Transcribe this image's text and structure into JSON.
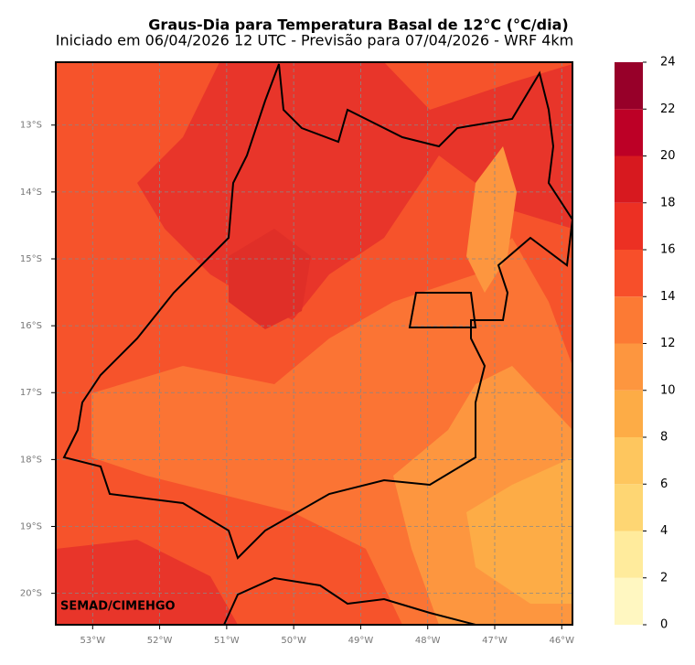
{
  "title": "Graus-Dia para Temperatura Basal de 12°C (°C/dia)",
  "subtitle": "Iniciado em 06/04/2026 12 UTC - Previsão para 07/04/2026 - WRF 4km",
  "credit": "SEMAD/CIMEHGO",
  "map": {
    "lon_range": [
      -53.55,
      -45.84
    ],
    "lat_range": [
      -12.06,
      -20.47
    ],
    "lon_ticks": [
      {
        "value": -53,
        "label": "53°W"
      },
      {
        "value": -52,
        "label": "52°W"
      },
      {
        "value": -51,
        "label": "51°W"
      },
      {
        "value": -50,
        "label": "50°W"
      },
      {
        "value": -49,
        "label": "49°W"
      },
      {
        "value": -48,
        "label": "48°W"
      },
      {
        "value": -47,
        "label": "47°W"
      },
      {
        "value": -46,
        "label": "46°W"
      }
    ],
    "lat_ticks": [
      {
        "value": -13,
        "label": "13°S"
      },
      {
        "value": -14,
        "label": "14°S"
      },
      {
        "value": -15,
        "label": "15°S"
      },
      {
        "value": -16,
        "label": "16°S"
      },
      {
        "value": -17,
        "label": "17°S"
      },
      {
        "value": -18,
        "label": "18°S"
      },
      {
        "value": -19,
        "label": "19°S"
      },
      {
        "value": -20,
        "label": "20°S"
      }
    ],
    "grid": true
  },
  "colorbar": {
    "ticks": [
      0,
      2,
      4,
      6,
      8,
      10,
      12,
      14,
      16,
      18,
      20,
      22,
      24
    ],
    "colors": [
      "#fff7c1",
      "#ffeb9c",
      "#fed673",
      "#fec65e",
      "#fdac46",
      "#fd963f",
      "#fc7a34",
      "#f74f2a",
      "#ec3023",
      "#d7191f",
      "#bd0026",
      "#970029"
    ]
  }
}
